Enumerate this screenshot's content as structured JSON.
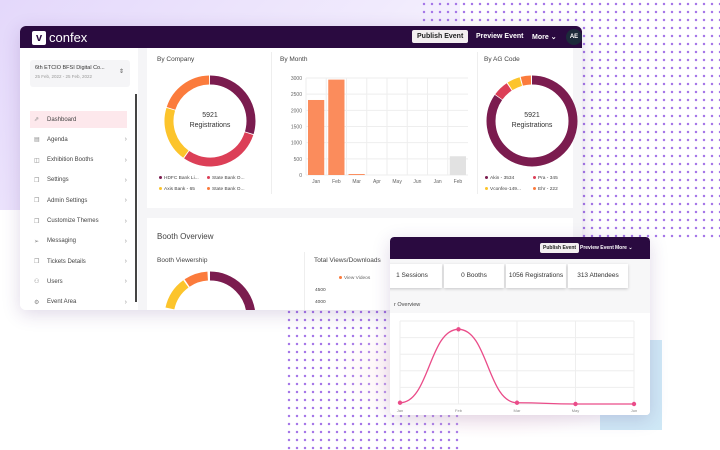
{
  "brand": {
    "letter": "v",
    "name": "confex"
  },
  "header": {
    "publish": "Publish Event",
    "preview": "Preview Event",
    "more": "More",
    "avatar": "AE"
  },
  "event": {
    "title": "6th ETCIO BFSI Digital Co...",
    "dates": "25 Feb, 2022 - 25 Feb, 2022"
  },
  "sidebar": {
    "items": [
      {
        "label": "Dashboard",
        "icon": "dashboard-icon",
        "active": true
      },
      {
        "label": "Agenda",
        "icon": "agenda-icon"
      },
      {
        "label": "Exhibition Booths",
        "icon": "booth-icon"
      },
      {
        "label": "Settings",
        "icon": "copy-icon"
      },
      {
        "label": "Admin Settings",
        "icon": "copy-icon"
      },
      {
        "label": "Customize Themes",
        "icon": "copy-icon"
      },
      {
        "label": "Messaging",
        "icon": "send-icon"
      },
      {
        "label": "Tickets Details",
        "icon": "copy-icon"
      },
      {
        "label": "Users",
        "icon": "users-icon"
      },
      {
        "label": "Event Area",
        "icon": "gear-icon"
      }
    ]
  },
  "colors": {
    "purple": "#7b1c4f",
    "red": "#dc3f57",
    "yellow": "#fcc42c",
    "orange": "#fb7b3c",
    "bar": "#fb8c5c",
    "line": "#ea4c89",
    "header": "#2a0a40"
  },
  "by_company": {
    "title": "By Company",
    "center_value": "5921",
    "center_label": "Registrations",
    "legend": [
      "HDFC Bank Li...",
      "State Bank O...",
      "Axis Bank - 65",
      "State Bank O..."
    ]
  },
  "by_ag": {
    "title": "By AG Code",
    "center_value": "5921",
    "center_label": "Registrations",
    "legend": [
      "Akin - 3534",
      "Pra - 345",
      "Vconfex-149...",
      "Ehr - 222"
    ]
  },
  "booth": {
    "title": "Booth Overview",
    "viewership": "Booth Viewership",
    "views": "Total Views/Downloads",
    "views_legend": "View Videos",
    "views_ticks": [
      "4500",
      "4000"
    ]
  },
  "stats": [
    "1 Sessions",
    "0 Booths",
    "1056 Registrations",
    "313 Attendees"
  ],
  "overview_title": "r Overview",
  "chart_data": [
    {
      "type": "pie",
      "title": "By Company",
      "series": [
        {
          "name": "HDFC Bank Li...",
          "value": 0.3
        },
        {
          "name": "State Bank O...",
          "value": 0.3
        },
        {
          "name": "Axis Bank - 65",
          "value": 0.2
        },
        {
          "name": "State Bank O...",
          "value": 0.2
        }
      ]
    },
    {
      "type": "bar",
      "title": "By Month",
      "categories": [
        "Jan",
        "Feb",
        "Mar",
        "Apr",
        "May",
        "Jun",
        "Jan",
        "Feb"
      ],
      "values": [
        2320,
        2950,
        30,
        0,
        0,
        0,
        0,
        580
      ],
      "yticks": [
        "0",
        "500",
        "1000",
        "1500",
        "2000",
        "2500",
        "3000"
      ],
      "ylim": [
        0,
        3000
      ],
      "grid": true
    },
    {
      "type": "pie",
      "title": "By AG Code",
      "series": [
        {
          "name": "Akin - 3534",
          "value": 0.85
        },
        {
          "name": "Pra - 345",
          "value": 0.06
        },
        {
          "name": "Vconfex-149...",
          "value": 0.05
        },
        {
          "name": "Ehr - 222",
          "value": 0.04
        }
      ]
    },
    {
      "type": "line",
      "categories": [
        "Jan",
        "Feb",
        "Mar",
        "May",
        "Jun"
      ],
      "values": [
        15,
        900,
        15,
        0,
        0
      ],
      "ylim": [
        0,
        1000
      ],
      "grid": true
    }
  ]
}
